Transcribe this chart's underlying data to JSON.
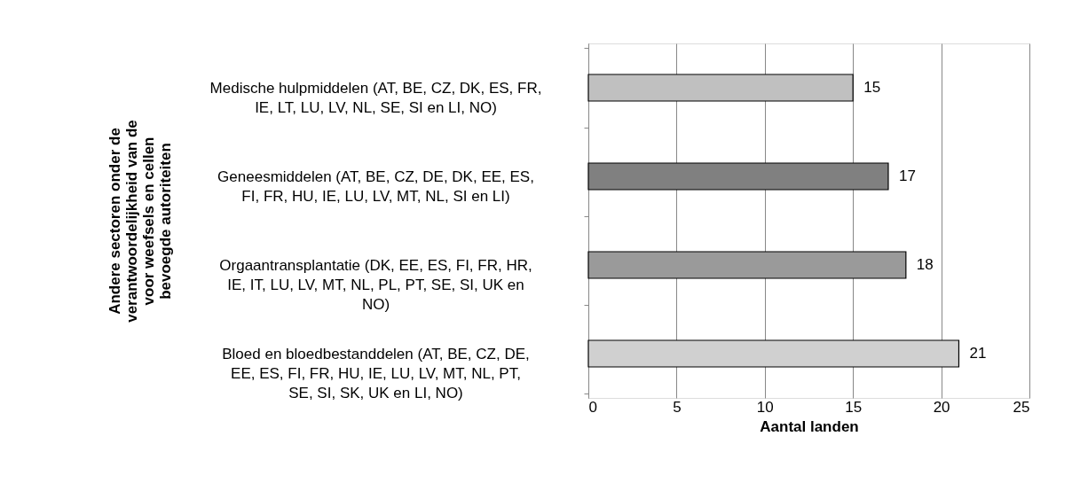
{
  "chart_data": {
    "type": "bar",
    "orientation": "horizontal",
    "categories": [
      "Medische hulpmiddelen (AT, BE, CZ, DK, ES, FR, IE, LT, LU, LV, NL, SE, SI en LI, NO)",
      "Geneesmiddelen (AT, BE, CZ, DE, DK, EE, ES, FI, FR, HU, IE, LU, LV, MT, NL, SI en LI)",
      "Orgaantransplantatie (DK, EE, ES, FI, FR, HR, IE, IT, LU, LV, MT, NL, PL, PT, SE, SI, UK en NO)",
      "Bloed en bloedbestanddelen (AT, BE, CZ, DE, EE, ES, FI, FR, HU, IE, LU, LV, MT, NL, PT, SE, SI, SK, UK en LI, NO)"
    ],
    "values": [
      15,
      17,
      18,
      21
    ],
    "colors": [
      "#c0c0c0",
      "#808080",
      "#9a9a9a",
      "#d0d0d0"
    ],
    "xlabel": "Aantal landen",
    "ylabel": "Andere sectoren onder de verantwoordelijkheid van de voor weefsels en cellen bevoegde autoriteiten",
    "xlim": [
      0,
      25
    ],
    "xticks": [
      0,
      5,
      10,
      15,
      20,
      25
    ],
    "grid": "x",
    "data_labels": true
  }
}
